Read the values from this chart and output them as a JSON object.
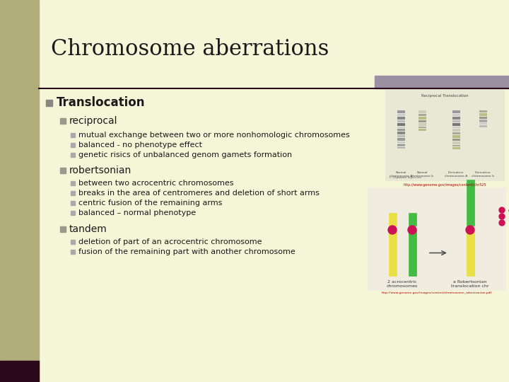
{
  "title": "Chromosome aberrations",
  "bg_color": "#f5f5d8",
  "left_bar_color": "#b0ad7a",
  "left_bar_dark_color": "#2a0a1a",
  "title_color": "#1a1a1a",
  "title_fontsize": 22,
  "header_bar_color": "#9b90a2",
  "divider_color": "#2a0a1a",
  "bullet_color": "#1a1a1a",
  "bullet_sq_color": "#888880",
  "sub_sq_color": "#999990",
  "tiny_sq_color": "#aaaaaa",
  "bullet1": "Translocation",
  "sub1": "reciprocal",
  "sub1_items": [
    "mutual exchange between two or more nonhomologic chromosomes",
    "balanced - no phenotype effect",
    "genetic risics of unbalanced genom gamets formation"
  ],
  "sub2": "robertsonian",
  "sub2_items": [
    "between two acrocentric chromosomes",
    "breaks in the area of centromeres and deletion of short arms",
    "centric fusion of the remaining arms",
    "balanced – normal phenotype"
  ],
  "sub3": "tandem",
  "sub3_items": [
    "deletion of part of an acrocentric chromosome",
    "fusion of the remaining part with another chromosome"
  ]
}
